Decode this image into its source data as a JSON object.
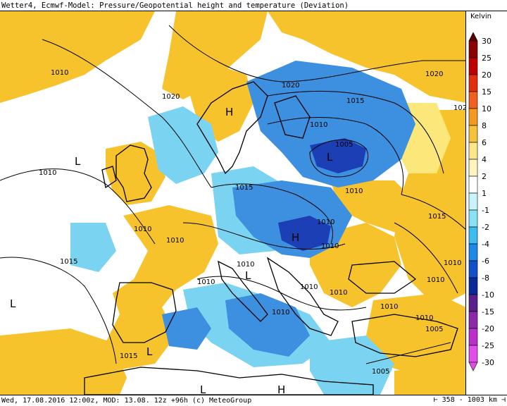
{
  "title": "Wetter4, Ecmwf-Model: Pressure/Geopotential height and temperature (Deviation)",
  "legend": {
    "unit": "Kelvin",
    "ticks": [
      "30",
      "25",
      "20",
      "15",
      "10",
      "8",
      "6",
      "4",
      "2",
      "1",
      "-1",
      "-2",
      "-4",
      "-6",
      "-8",
      "-10",
      "-15",
      "-20",
      "-25",
      "-30"
    ],
    "colors": [
      "#5a0000",
      "#8b0000",
      "#c00000",
      "#e03010",
      "#f06020",
      "#f49a20",
      "#f5c23a",
      "#fbe68a",
      "#fff4c0",
      "#ffffff",
      "#c8f4fb",
      "#8ae2f5",
      "#3bbbee",
      "#1e88e5",
      "#1450c8",
      "#0a2a9a",
      "#5a208a",
      "#8a2aa8",
      "#b830c8",
      "#e050e8"
    ]
  },
  "map": {
    "colors": {
      "land_warm": "#f7c32d",
      "land_light": "#fbe77a",
      "cold": "#3d8fe0",
      "cool": "#7ad3f0",
      "deep_cold": "#1c3fb5",
      "neutral": "#ffffff"
    },
    "isobar_labels": [
      "1010",
      "1020",
      "1020",
      "1015",
      "1010",
      "1005",
      "1010",
      "1015",
      "1010",
      "1015",
      "1010",
      "1015",
      "1010",
      "1010",
      "1010",
      "1010",
      "1010",
      "1010",
      "1010",
      "1010",
      "1010",
      "1010",
      "1005",
      "1015",
      "1015",
      "1010",
      "1005",
      "1010",
      "1020",
      "102"
    ],
    "centers": [
      "H",
      "L",
      "L",
      "H",
      "L",
      "L",
      "L",
      "L",
      "H"
    ]
  },
  "footer": {
    "text": "Wed, 17.08.2016 12:00z, MOD: 13.08. 12z +96h (c) MeteoGroup",
    "scale": "358 - 1003 km"
  }
}
